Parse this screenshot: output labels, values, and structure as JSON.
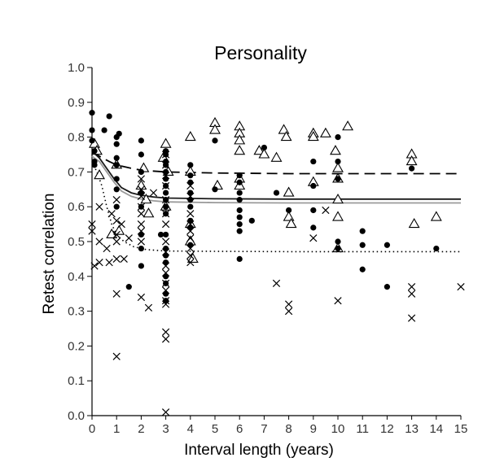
{
  "chart_data": {
    "type": "scatter",
    "title": "Personality",
    "xlabel": "Interval length (years)",
    "ylabel": "Retest correlation",
    "xlim": [
      0,
      15
    ],
    "ylim": [
      0,
      1.0
    ],
    "x_ticks": [
      "0",
      "1",
      "2",
      "3",
      "4",
      "5",
      "6",
      "7",
      "8",
      "9",
      "10",
      "11",
      "12",
      "13",
      "14",
      "15"
    ],
    "y_ticks": [
      "0.0",
      "0.1",
      "0.2",
      "0.3",
      "0.4",
      "0.5",
      "0.6",
      "0.7",
      "0.8",
      "0.9",
      "1.0"
    ],
    "grid": false,
    "series": [
      {
        "marker": "triangle",
        "points": [
          [
            0.1,
            0.78
          ],
          [
            0.2,
            0.76
          ],
          [
            0.3,
            0.69
          ],
          [
            0.8,
            0.52
          ],
          [
            1.0,
            0.72
          ],
          [
            1.1,
            0.53
          ],
          [
            2.0,
            0.66
          ],
          [
            2.1,
            0.71
          ],
          [
            2.2,
            0.62
          ],
          [
            2.3,
            0.58
          ],
          [
            2.9,
            0.74
          ],
          [
            3.0,
            0.78
          ],
          [
            3.1,
            0.7
          ],
          [
            3.0,
            0.6
          ],
          [
            4.0,
            0.8
          ],
          [
            4.0,
            0.7
          ],
          [
            4.0,
            0.55
          ],
          [
            4.0,
            0.5
          ],
          [
            4.1,
            0.45
          ],
          [
            5.0,
            0.84
          ],
          [
            5.0,
            0.82
          ],
          [
            5.1,
            0.66
          ],
          [
            6.0,
            0.83
          ],
          [
            6.0,
            0.81
          ],
          [
            6.0,
            0.79
          ],
          [
            6.0,
            0.76
          ],
          [
            6.0,
            0.68
          ],
          [
            6.0,
            0.66
          ],
          [
            6.8,
            0.76
          ],
          [
            7.0,
            0.75
          ],
          [
            7.5,
            0.74
          ],
          [
            7.8,
            0.82
          ],
          [
            7.9,
            0.8
          ],
          [
            8.0,
            0.64
          ],
          [
            8.0,
            0.57
          ],
          [
            8.1,
            0.55
          ],
          [
            9.0,
            0.81
          ],
          [
            9.0,
            0.8
          ],
          [
            9.0,
            0.67
          ],
          [
            9.5,
            0.81
          ],
          [
            9.9,
            0.76
          ],
          [
            10.0,
            0.71
          ],
          [
            10.0,
            0.68
          ],
          [
            10.0,
            0.62
          ],
          [
            10.0,
            0.57
          ],
          [
            10.0,
            0.48
          ],
          [
            10.4,
            0.83
          ],
          [
            13.0,
            0.75
          ],
          [
            13.0,
            0.73
          ],
          [
            13.1,
            0.55
          ],
          [
            14.0,
            0.57
          ]
        ]
      },
      {
        "marker": "dot",
        "points": [
          [
            0.0,
            0.87
          ],
          [
            0.0,
            0.82
          ],
          [
            0.0,
            0.79
          ],
          [
            0.1,
            0.76
          ],
          [
            0.1,
            0.73
          ],
          [
            0.1,
            0.72
          ],
          [
            0.5,
            0.82
          ],
          [
            0.7,
            0.86
          ],
          [
            1.0,
            0.8
          ],
          [
            1.0,
            0.78
          ],
          [
            1.0,
            0.74
          ],
          [
            1.0,
            0.72
          ],
          [
            1.0,
            0.68
          ],
          [
            1.0,
            0.65
          ],
          [
            1.0,
            0.6
          ],
          [
            1.1,
            0.81
          ],
          [
            1.5,
            0.37
          ],
          [
            2.0,
            0.79
          ],
          [
            2.0,
            0.75
          ],
          [
            2.0,
            0.7
          ],
          [
            2.0,
            0.64
          ],
          [
            2.0,
            0.6
          ],
          [
            2.0,
            0.52
          ],
          [
            2.0,
            0.48
          ],
          [
            2.0,
            0.43
          ],
          [
            2.8,
            0.52
          ],
          [
            3.0,
            0.76
          ],
          [
            3.0,
            0.75
          ],
          [
            3.0,
            0.73
          ],
          [
            3.0,
            0.72
          ],
          [
            3.0,
            0.7
          ],
          [
            3.0,
            0.68
          ],
          [
            3.0,
            0.66
          ],
          [
            3.0,
            0.64
          ],
          [
            3.0,
            0.62
          ],
          [
            3.0,
            0.6
          ],
          [
            3.0,
            0.58
          ],
          [
            3.0,
            0.52
          ],
          [
            3.0,
            0.48
          ],
          [
            3.0,
            0.46
          ],
          [
            3.0,
            0.44
          ],
          [
            3.0,
            0.4
          ],
          [
            3.0,
            0.38
          ],
          [
            3.0,
            0.35
          ],
          [
            3.0,
            0.33
          ],
          [
            4.0,
            0.72
          ],
          [
            4.0,
            0.69
          ],
          [
            4.0,
            0.67
          ],
          [
            4.0,
            0.64
          ],
          [
            4.0,
            0.62
          ],
          [
            4.0,
            0.6
          ],
          [
            4.0,
            0.56
          ],
          [
            4.0,
            0.54
          ],
          [
            4.0,
            0.49
          ],
          [
            5.0,
            0.79
          ],
          [
            5.0,
            0.65
          ],
          [
            6.0,
            0.69
          ],
          [
            6.0,
            0.67
          ],
          [
            6.0,
            0.64
          ],
          [
            6.0,
            0.62
          ],
          [
            6.0,
            0.59
          ],
          [
            6.0,
            0.57
          ],
          [
            6.0,
            0.55
          ],
          [
            6.0,
            0.53
          ],
          [
            6.0,
            0.45
          ],
          [
            6.5,
            0.56
          ],
          [
            7.0,
            0.77
          ],
          [
            7.5,
            0.64
          ],
          [
            8.0,
            0.59
          ],
          [
            9.0,
            0.73
          ],
          [
            9.0,
            0.66
          ],
          [
            9.0,
            0.59
          ],
          [
            9.0,
            0.54
          ],
          [
            10.0,
            0.8
          ],
          [
            10.0,
            0.73
          ],
          [
            10.0,
            0.68
          ],
          [
            10.0,
            0.5
          ],
          [
            10.0,
            0.48
          ],
          [
            11.0,
            0.53
          ],
          [
            11.0,
            0.49
          ],
          [
            11.0,
            0.42
          ],
          [
            12.0,
            0.49
          ],
          [
            12.0,
            0.37
          ],
          [
            13.0,
            0.71
          ],
          [
            14.0,
            0.48
          ]
        ]
      },
      {
        "marker": "cross",
        "points": [
          [
            0.0,
            0.55
          ],
          [
            0.0,
            0.53
          ],
          [
            0.1,
            0.43
          ],
          [
            0.3,
            0.6
          ],
          [
            0.3,
            0.5
          ],
          [
            0.3,
            0.44
          ],
          [
            0.6,
            0.48
          ],
          [
            0.7,
            0.44
          ],
          [
            0.8,
            0.58
          ],
          [
            1.0,
            0.62
          ],
          [
            1.0,
            0.56
          ],
          [
            1.0,
            0.52
          ],
          [
            1.0,
            0.5
          ],
          [
            1.0,
            0.45
          ],
          [
            1.0,
            0.35
          ],
          [
            1.0,
            0.17
          ],
          [
            1.2,
            0.55
          ],
          [
            1.3,
            0.45
          ],
          [
            1.5,
            0.51
          ],
          [
            2.0,
            0.68
          ],
          [
            2.0,
            0.65
          ],
          [
            2.0,
            0.63
          ],
          [
            2.0,
            0.6
          ],
          [
            2.0,
            0.58
          ],
          [
            2.0,
            0.55
          ],
          [
            2.0,
            0.53
          ],
          [
            2.0,
            0.5
          ],
          [
            2.0,
            0.34
          ],
          [
            2.3,
            0.31
          ],
          [
            2.5,
            0.64
          ],
          [
            3.0,
            0.75
          ],
          [
            3.0,
            0.72
          ],
          [
            3.0,
            0.69
          ],
          [
            3.0,
            0.66
          ],
          [
            3.0,
            0.62
          ],
          [
            3.0,
            0.58
          ],
          [
            3.0,
            0.55
          ],
          [
            3.0,
            0.5
          ],
          [
            3.0,
            0.47
          ],
          [
            3.0,
            0.43
          ],
          [
            3.0,
            0.41
          ],
          [
            3.0,
            0.38
          ],
          [
            3.0,
            0.36
          ],
          [
            3.0,
            0.33
          ],
          [
            3.0,
            0.32
          ],
          [
            3.0,
            0.24
          ],
          [
            3.0,
            0.22
          ],
          [
            3.0,
            0.01
          ],
          [
            4.0,
            0.66
          ],
          [
            4.0,
            0.63
          ],
          [
            4.0,
            0.58
          ],
          [
            4.0,
            0.55
          ],
          [
            4.0,
            0.53
          ],
          [
            4.0,
            0.51
          ],
          [
            4.0,
            0.48
          ],
          [
            4.0,
            0.46
          ],
          [
            4.0,
            0.44
          ],
          [
            7.5,
            0.38
          ],
          [
            8.0,
            0.32
          ],
          [
            8.0,
            0.3
          ],
          [
            9.0,
            0.51
          ],
          [
            9.5,
            0.59
          ],
          [
            10.0,
            0.33
          ],
          [
            13.0,
            0.37
          ],
          [
            13.0,
            0.35
          ],
          [
            13.0,
            0.28
          ],
          [
            15.0,
            0.37
          ]
        ]
      }
    ],
    "fitted_lines": [
      {
        "style": "dashed",
        "points": [
          [
            0,
            0.76
          ],
          [
            0.3,
            0.745
          ],
          [
            0.7,
            0.73
          ],
          [
            1,
            0.72
          ],
          [
            1.5,
            0.712
          ],
          [
            2,
            0.705
          ],
          [
            3,
            0.7
          ],
          [
            5,
            0.697
          ],
          [
            8,
            0.695
          ],
          [
            15,
            0.695
          ]
        ]
      },
      {
        "style": "solid-dark",
        "points": [
          [
            0,
            0.76
          ],
          [
            0.3,
            0.74
          ],
          [
            0.6,
            0.71
          ],
          [
            0.9,
            0.68
          ],
          [
            1.2,
            0.655
          ],
          [
            1.6,
            0.64
          ],
          [
            2,
            0.633
          ],
          [
            2.5,
            0.628
          ],
          [
            3,
            0.625
          ],
          [
            5,
            0.623
          ],
          [
            8,
            0.622
          ],
          [
            15,
            0.622
          ]
        ]
      },
      {
        "style": "solid-light",
        "points": [
          [
            0,
            0.745
          ],
          [
            0.3,
            0.73
          ],
          [
            0.6,
            0.7
          ],
          [
            0.9,
            0.67
          ],
          [
            1.2,
            0.645
          ],
          [
            1.6,
            0.63
          ],
          [
            2,
            0.622
          ],
          [
            2.5,
            0.617
          ],
          [
            3,
            0.614
          ],
          [
            5,
            0.612
          ],
          [
            8,
            0.611
          ],
          [
            15,
            0.611
          ]
        ]
      },
      {
        "style": "dotted",
        "points": [
          [
            0,
            0.73
          ],
          [
            0.2,
            0.7
          ],
          [
            0.4,
            0.66
          ],
          [
            0.6,
            0.6
          ],
          [
            0.8,
            0.55
          ],
          [
            1,
            0.52
          ],
          [
            1.3,
            0.5
          ],
          [
            1.7,
            0.485
          ],
          [
            2.2,
            0.477
          ],
          [
            3,
            0.473
          ],
          [
            5,
            0.472
          ],
          [
            8,
            0.471
          ],
          [
            15,
            0.471
          ]
        ]
      }
    ]
  }
}
